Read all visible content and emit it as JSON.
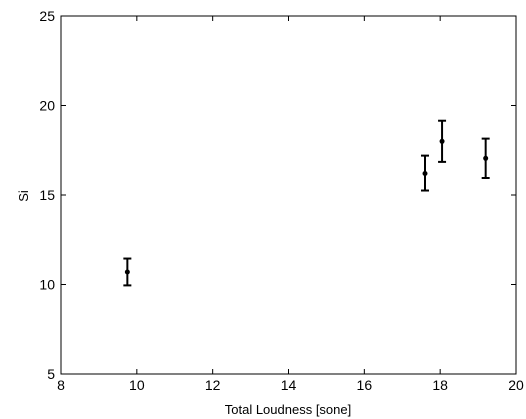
{
  "chart_data": {
    "type": "scatter",
    "title": "",
    "xlabel": "Total Loudness [sone]",
    "ylabel": "Si",
    "xlim": [
      8,
      20
    ],
    "ylim": [
      5,
      25
    ],
    "xticks": [
      "8",
      "10",
      "12",
      "14",
      "16",
      "18",
      "20"
    ],
    "yticks": [
      "5",
      "10",
      "15",
      "20",
      "25"
    ],
    "grid": false,
    "series": [
      {
        "points": [
          {
            "x": 9.75,
            "y": 10.7,
            "err_low": 9.95,
            "err_high": 11.45
          },
          {
            "x": 17.6,
            "y": 16.2,
            "err_low": 15.25,
            "err_high": 17.2
          },
          {
            "x": 18.05,
            "y": 18.0,
            "err_low": 16.85,
            "err_high": 19.15
          },
          {
            "x": 19.2,
            "y": 17.05,
            "err_low": 15.95,
            "err_high": 18.15
          }
        ],
        "color": "#000000"
      }
    ]
  }
}
